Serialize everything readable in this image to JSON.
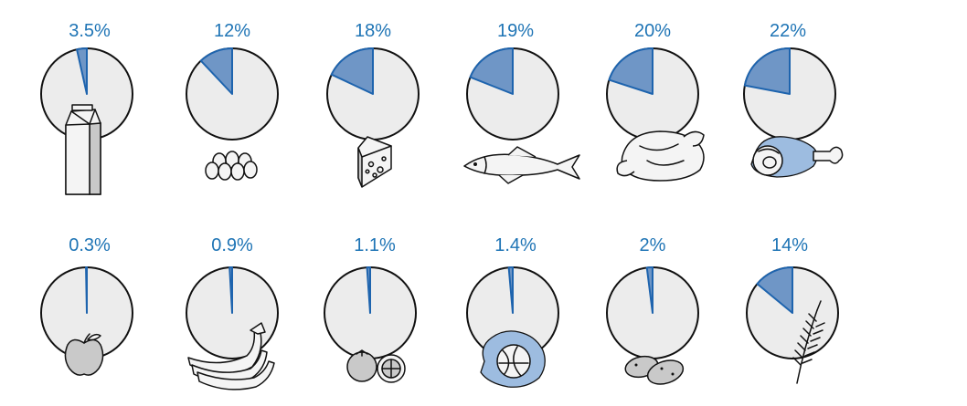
{
  "chart_data": {
    "type": "pie",
    "legend": "none",
    "items": [
      {
        "label": "3.5%",
        "value": 3.5,
        "icon": "milk-carton-icon"
      },
      {
        "label": "12%",
        "value": 12,
        "icon": "eggs-icon"
      },
      {
        "label": "18%",
        "value": 18,
        "icon": "cheese-icon"
      },
      {
        "label": "19%",
        "value": 19,
        "icon": "fish-icon"
      },
      {
        "label": "20%",
        "value": 20,
        "icon": "chicken-icon"
      },
      {
        "label": "22%",
        "value": 22,
        "icon": "ham-icon"
      },
      {
        "label": "0.3%",
        "value": 0.3,
        "icon": "apple-icon"
      },
      {
        "label": "0.9%",
        "value": 0.9,
        "icon": "bananas-icon"
      },
      {
        "label": "1.1%",
        "value": 1.1,
        "icon": "tomato-icon"
      },
      {
        "label": "1.4%",
        "value": 1.4,
        "icon": "cabbage-icon"
      },
      {
        "label": "2%",
        "value": 2,
        "icon": "potatoes-icon"
      },
      {
        "label": "14%",
        "value": 14,
        "icon": "wheat-icon"
      }
    ]
  },
  "colors": {
    "label": "#1e74b5",
    "disc": "#ececec",
    "slice_fill": "#6f96c6",
    "slice_stroke": "#1e64ae"
  }
}
